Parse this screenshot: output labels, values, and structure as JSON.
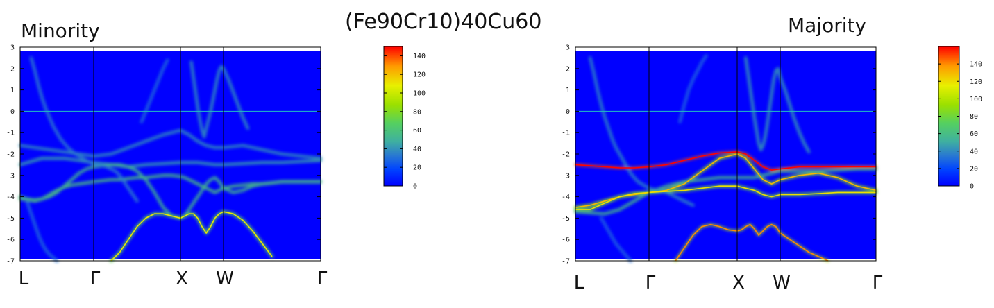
{
  "figure": {
    "title": "(Fe90Cr10)40Cu60"
  },
  "chart_data": [
    {
      "type": "heatmap",
      "label": "Minority",
      "kpoints": [
        "L",
        "Γ",
        "X",
        "W",
        "Γ"
      ],
      "ylim": [
        -7,
        3
      ],
      "yticks": [
        3,
        2,
        1,
        0,
        -1,
        -2,
        -3,
        -4,
        -5,
        -6,
        -7
      ],
      "fermi_level": 0,
      "colorbar": {
        "min": 0,
        "max": 150,
        "ticks": [
          0,
          20,
          40,
          60,
          80,
          100,
          120,
          140
        ]
      },
      "colors": {
        "low": "#0000ff",
        "mid": "#00ff00",
        "high": "#ff0000",
        "fermi": "#22c0c0"
      },
      "bands": [
        {
          "x": [
            0,
            0.1,
            0.2,
            0.3,
            0.4,
            0.5,
            0.6,
            0.7,
            0.8,
            0.9,
            1,
            1.1,
            1.2,
            1.3,
            1.4,
            1.5,
            1.6,
            1.7,
            1.8,
            1.9,
            2,
            2.1,
            2.2,
            2.3,
            2.4,
            2.5,
            2.6,
            2.7,
            2.8,
            2.9,
            3,
            3.1,
            3.2,
            3.3,
            3.4,
            3.5,
            3.6,
            3.7,
            3.8,
            3.9,
            4
          ],
          "y": [
            -4.1,
            -4.15,
            -4.2,
            -4.1,
            -3.9,
            -3.7,
            -3.55,
            -3.45,
            -3.4,
            -3.35,
            -3.3,
            -3.25,
            -3.2,
            -3.2,
            -3.15,
            -3.1,
            -3.1,
            -3.05,
            -3.0,
            -3.0,
            -3.05,
            -3.1,
            -3.2,
            -3.3,
            -3.4,
            -3.5,
            -3.6,
            -3.7,
            -3.8,
            -3.7,
            -3.6,
            -3.5,
            -3.45,
            -3.4,
            -3.4,
            -3.35,
            -3.3,
            -3.3,
            -3.3,
            -3.3,
            -3.3
          ],
          "intensity": 60
        },
        {
          "x": [
            0,
            0.1,
            0.2,
            0.3,
            0.4,
            0.5,
            0.6,
            0.7,
            0.8,
            0.9,
            1,
            1.2,
            1.4,
            1.6,
            1.8,
            2,
            2.2,
            2.4,
            2.6,
            2.8,
            3,
            3.2,
            3.4,
            3.6,
            3.8,
            4
          ],
          "y": [
            -2.5,
            -2.4,
            -2.3,
            -2.2,
            -2.2,
            -2.2,
            -2.2,
            -2.25,
            -2.3,
            -2.35,
            -2.4,
            -2.5,
            -2.6,
            -2.5,
            -2.45,
            -2.4,
            -2.4,
            -2.4,
            -2.45,
            -2.5,
            -2.5,
            -2.45,
            -2.4,
            -2.4,
            -2.35,
            -2.3
          ],
          "intensity": 45
        },
        {
          "x": [
            0,
            0.2,
            0.4,
            0.6,
            0.8,
            1,
            1.2,
            1.4,
            1.6,
            1.8,
            2,
            2.2,
            2.4,
            2.6,
            2.8,
            3,
            3.2,
            3.4,
            3.6,
            3.8,
            4
          ],
          "y": [
            -1.6,
            -1.7,
            -1.8,
            -1.9,
            -2.0,
            -2.1,
            -2.0,
            -1.7,
            -1.4,
            -1.1,
            -0.9,
            -1.1,
            -1.4,
            -1.6,
            -1.7,
            -1.7,
            -1.6,
            -1.8,
            -2.0,
            -2.1,
            -2.2
          ],
          "intensity": 40
        },
        {
          "x": [
            0,
            0.1,
            0.2,
            0.3,
            0.4,
            0.5,
            0.6,
            0.7,
            0.8,
            0.9,
            1,
            1.1,
            1.2,
            1.3,
            1.4,
            1.5,
            1.6,
            1.7,
            1.8,
            1.9,
            2,
            2.1,
            2.2,
            2.3,
            2.4,
            2.5,
            2.6,
            2.7,
            2.8,
            2.9,
            3,
            3.1,
            3.2,
            3.3,
            3.4,
            3.5,
            3.6,
            3.7,
            3.8,
            3.9,
            4
          ],
          "y": [
            -4.0,
            -4.1,
            -4.15,
            -4.1,
            -4.0,
            -3.8,
            -3.5,
            -3.2,
            -2.9,
            -2.7,
            -2.6,
            -2.55,
            -2.5,
            -2.5,
            -2.6,
            -2.8,
            -3.2,
            -3.8,
            -4.5,
            -4.9,
            -5.0,
            -4.9,
            -4.6,
            -4.3,
            -4.0,
            -3.7,
            -3.4,
            -3.2,
            -3.1,
            -3.3,
            -3.6,
            -3.8,
            -3.7,
            -3.5,
            -3.4,
            -3.35,
            -3.3,
            -3.3,
            -3.3,
            -3.3,
            -3.3
          ],
          "intensity": 55
        },
        {
          "x": [
            0.15,
            0.2,
            0.25,
            0.3,
            0.35,
            0.4,
            0.45,
            0.5,
            0.55,
            0.6,
            0.65,
            0.7,
            0.75,
            0.8,
            0.85,
            0.9,
            0.95,
            1,
            1.05,
            1.1,
            1.15,
            1.2,
            1.25,
            1.3,
            1.35,
            1.4,
            1.45,
            1.5
          ],
          "y": [
            2.5,
            1.9,
            1.2,
            0.6,
            0.1,
            -0.3,
            -0.7,
            -1.0,
            -1.3,
            -1.5,
            -1.7,
            -1.85,
            -2.0,
            -2.1,
            -2.2,
            -2.3,
            -2.4,
            -2.45,
            -2.5,
            -2.55,
            -2.6,
            -2.7,
            -2.8,
            -3.0,
            -3.3,
            -3.6,
            -3.9,
            -4.2
          ],
          "intensity": 35
        },
        {
          "x": [
            0.1,
            0.15,
            0.2,
            0.25,
            0.3,
            0.35,
            0.4,
            0.45,
            0.5
          ],
          "y": [
            -4.3,
            -4.8,
            -5.3,
            -5.8,
            -6.2,
            -6.5,
            -6.7,
            -6.85,
            -7.0
          ],
          "intensity": 30
        },
        {
          "x": [
            1.2,
            1.3,
            1.4,
            1.5,
            1.6,
            1.7,
            1.8,
            1.9,
            2,
            2.1,
            2.2,
            2.3,
            2.4,
            2.5,
            2.6,
            2.7,
            2.8,
            2.9,
            3,
            3.1,
            3.2,
            3.3,
            3.4,
            3.5
          ],
          "y": [
            -7.0,
            -6.6,
            -6.0,
            -5.4,
            -5.0,
            -4.8,
            -4.8,
            -4.9,
            -5.0,
            -4.9,
            -4.8,
            -4.8,
            -5.0,
            -5.4,
            -5.7,
            -5.4,
            -5.0,
            -4.8,
            -4.7,
            -4.8,
            -5.1,
            -5.6,
            -6.2,
            -6.8
          ],
          "intensity": 70
        },
        {
          "x": [
            1.55,
            1.6,
            1.65,
            1.7,
            1.75,
            1.8,
            1.85
          ],
          "y": [
            -0.5,
            0.0,
            0.5,
            1.0,
            1.5,
            2.0,
            2.4
          ],
          "intensity": 30
        },
        {
          "x": [
            2.25,
            2.3,
            2.35,
            2.4,
            2.45,
            2.5,
            2.55,
            2.6,
            2.65,
            2.7,
            2.75,
            2.8,
            2.85,
            2.9,
            2.95,
            3.0,
            3.05,
            3.1,
            3.15,
            3.2,
            3.25
          ],
          "y": [
            2.3,
            1.6,
            0.9,
            0.2,
            -0.4,
            -0.9,
            -1.2,
            -0.8,
            -0.4,
            0.0,
            0.5,
            1.0,
            1.5,
            1.9,
            2.1,
            2.0,
            1.5,
            0.9,
            0.3,
            -0.3,
            -0.8
          ],
          "intensity": 40
        }
      ]
    },
    {
      "type": "heatmap",
      "label": "Majority",
      "kpoints": [
        "L",
        "Γ",
        "X",
        "W",
        "Γ"
      ],
      "ylim": [
        -7,
        3
      ],
      "yticks": [
        3,
        2,
        1,
        0,
        -1,
        -2,
        -3,
        -4,
        -5,
        -6,
        -7
      ],
      "fermi_level": 0,
      "colorbar": {
        "min": 0,
        "max": 160,
        "ticks": [
          0,
          20,
          40,
          60,
          80,
          100,
          120,
          140
        ]
      },
      "colors": {
        "low": "#0000ff",
        "mid": "#00ff00",
        "high": "#ff0000",
        "fermi": "#22c0c0"
      },
      "bands": [
        {
          "x": [
            0,
            0.2,
            0.4,
            0.6,
            0.8,
            1,
            1.2,
            1.4,
            1.6,
            1.8,
            2,
            2.2,
            2.4,
            2.6,
            2.8,
            3,
            3.2,
            3.4,
            3.6,
            3.8,
            4
          ],
          "y": [
            -2.5,
            -2.55,
            -2.6,
            -2.65,
            -2.65,
            -2.6,
            -2.5,
            -2.3,
            -2.1,
            -1.95,
            -1.9,
            -2.0,
            -2.3,
            -2.6,
            -2.75,
            -2.7,
            -2.6,
            -2.6,
            -2.6,
            -2.6,
            -2.6
          ],
          "intensity": 150
        },
        {
          "x": [
            0,
            0.2,
            0.4,
            0.6,
            0.8,
            1,
            1.2,
            1.4,
            1.6,
            1.8,
            2,
            2.2,
            2.4,
            2.6,
            2.8,
            3,
            3.2,
            3.4,
            3.6,
            3.8,
            4
          ],
          "y": [
            -4.5,
            -4.4,
            -4.2,
            -4.0,
            -3.9,
            -3.8,
            -3.7,
            -3.4,
            -2.8,
            -2.2,
            -2.0,
            -2.2,
            -2.7,
            -3.2,
            -3.4,
            -3.2,
            -3.0,
            -2.9,
            -3.1,
            -3.5,
            -3.7
          ],
          "intensity": 90
        },
        {
          "x": [
            0,
            0.2,
            0.4,
            0.6,
            0.8,
            1,
            1.2,
            1.4,
            1.6,
            1.8,
            2,
            2.2,
            2.4,
            2.6,
            2.8,
            3,
            3.2,
            3.4,
            3.6,
            3.8,
            4
          ],
          "y": [
            -4.6,
            -4.6,
            -4.3,
            -4.0,
            -3.85,
            -3.8,
            -3.75,
            -3.7,
            -3.6,
            -3.5,
            -3.5,
            -3.6,
            -3.7,
            -3.9,
            -4.0,
            -3.9,
            -3.9,
            -3.85,
            -3.8,
            -3.8,
            -3.8
          ],
          "intensity": 80
        },
        {
          "x": [
            0,
            0.2,
            0.4,
            0.6,
            0.8,
            1,
            1.2,
            1.4,
            1.6,
            1.8,
            2,
            2.2,
            2.4,
            2.6,
            2.8,
            3,
            3.2,
            3.4,
            3.6,
            3.8,
            4
          ],
          "y": [
            -4.7,
            -4.75,
            -4.8,
            -4.6,
            -4.2,
            -3.8,
            -3.5,
            -3.3,
            -3.2,
            -3.1,
            -3.1,
            -3.1,
            -3.1,
            -3.0,
            -2.9,
            -2.8,
            -2.8,
            -2.8,
            -2.75,
            -2.7,
            -2.7
          ],
          "intensity": 60
        },
        {
          "x": [
            0.2,
            0.25,
            0.3,
            0.35,
            0.4,
            0.45,
            0.5,
            0.55,
            0.6,
            0.65,
            0.7,
            0.75,
            0.8,
            0.85,
            0.9,
            0.95,
            1,
            1.1,
            1.2,
            1.3,
            1.4,
            1.5
          ],
          "y": [
            2.5,
            1.8,
            1.0,
            0.3,
            -0.3,
            -0.8,
            -1.3,
            -1.7,
            -2.0,
            -2.3,
            -2.6,
            -2.9,
            -3.1,
            -3.3,
            -3.4,
            -3.5,
            -3.6,
            -3.7,
            -3.8,
            -4.0,
            -4.2,
            -4.4
          ],
          "intensity": 40
        },
        {
          "x": [
            0.35,
            0.4,
            0.45,
            0.5,
            0.55,
            0.6,
            0.65,
            0.7,
            0.75
          ],
          "y": [
            -5.0,
            -5.3,
            -5.6,
            -5.9,
            -6.2,
            -6.4,
            -6.6,
            -6.8,
            -7.0
          ],
          "intensity": 30
        },
        {
          "x": [
            1.3,
            1.4,
            1.5,
            1.6,
            1.7,
            1.8,
            1.9,
            2,
            2.1,
            2.2,
            2.3,
            2.4,
            2.5,
            2.6,
            2.7,
            2.8,
            2.9,
            3,
            3.1,
            3.2,
            3.3,
            3.4,
            3.5
          ],
          "y": [
            -7.0,
            -6.4,
            -5.8,
            -5.4,
            -5.3,
            -5.4,
            -5.55,
            -5.6,
            -5.55,
            -5.4,
            -5.3,
            -5.5,
            -5.8,
            -5.6,
            -5.4,
            -5.3,
            -5.4,
            -5.7,
            -6.0,
            -6.3,
            -6.6,
            -6.8,
            -7.0
          ],
          "intensity": 100
        },
        {
          "x": [
            1.35,
            1.4,
            1.45,
            1.5,
            1.55,
            1.6,
            1.65
          ],
          "y": [
            -0.5,
            0.3,
            1.0,
            1.5,
            1.9,
            2.3,
            2.6
          ],
          "intensity": 30
        },
        {
          "x": [
            2.2,
            2.25,
            2.3,
            2.35,
            2.4,
            2.45,
            2.5,
            2.55,
            2.6,
            2.65,
            2.7,
            2.75,
            2.8,
            2.85,
            2.9,
            2.95,
            3.0,
            3.05,
            3.1,
            3.15,
            3.2,
            3.25,
            3.3
          ],
          "y": [
            2.5,
            1.8,
            1.1,
            0.4,
            -0.3,
            -0.9,
            -1.5,
            -1.8,
            -1.6,
            -1.2,
            -0.6,
            0.1,
            0.8,
            1.5,
            1.9,
            2.0,
            1.6,
            1.0,
            0.3,
            -0.4,
            -1.0,
            -1.5,
            -1.9
          ],
          "intensity": 45
        }
      ]
    }
  ]
}
